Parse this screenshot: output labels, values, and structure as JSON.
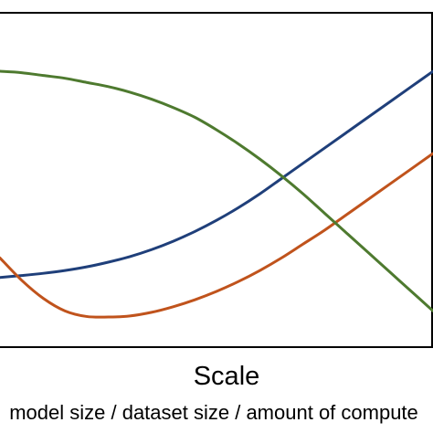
{
  "chart_data": {
    "type": "line",
    "xlabel": "Scale",
    "xlabel_sub": "model size / dataset size / amount of compute",
    "ylabel": "",
    "grid": false,
    "x": [
      0,
      0.05,
      0.1,
      0.15,
      0.2,
      0.25,
      0.3,
      0.35,
      0.4,
      0.45,
      0.5,
      0.55,
      0.6,
      0.65,
      0.7,
      0.75,
      0.8,
      0.85,
      0.9,
      0.95,
      1.0
    ],
    "series": [
      {
        "color": "#1f3f7a",
        "values": [
          0.25,
          0.257,
          0.265,
          0.275,
          0.288,
          0.305,
          0.325,
          0.35,
          0.38,
          0.415,
          0.455,
          0.5,
          0.55,
          0.605,
          0.66,
          0.715,
          0.77,
          0.825,
          0.88,
          0.935,
          0.99
        ]
      },
      {
        "color": "#c0531c",
        "values": [
          0.32,
          0.24,
          0.175,
          0.13,
          0.11,
          0.108,
          0.112,
          0.125,
          0.145,
          0.17,
          0.2,
          0.235,
          0.275,
          0.32,
          0.37,
          0.42,
          0.475,
          0.53,
          0.585,
          0.64,
          0.695
        ]
      },
      {
        "color": "#4e7a2f",
        "values": [
          0.99,
          0.985,
          0.975,
          0.965,
          0.95,
          0.935,
          0.915,
          0.89,
          0.86,
          0.825,
          0.78,
          0.73,
          0.675,
          0.615,
          0.55,
          0.48,
          0.41,
          0.34,
          0.27,
          0.2,
          0.13
        ]
      }
    ],
    "xlim": [
      0,
      1
    ],
    "ylim": [
      0,
      1.2
    ]
  }
}
